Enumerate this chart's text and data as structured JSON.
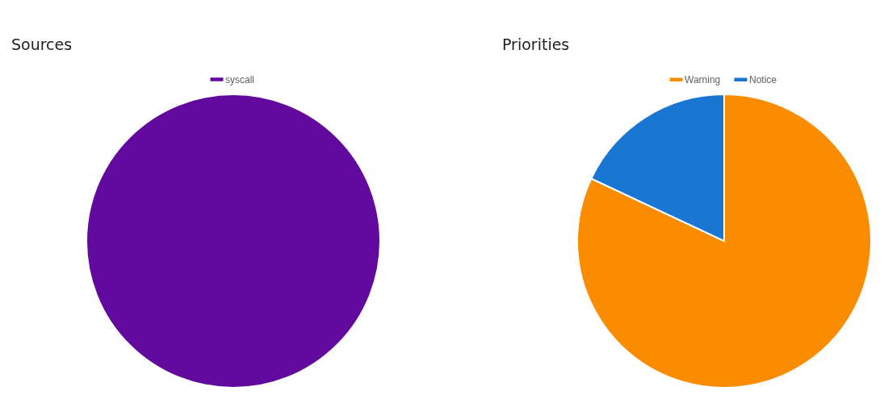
{
  "chart_data": [
    {
      "type": "pie",
      "title": "Sources",
      "categories": [
        "syscall"
      ],
      "values": [
        100
      ],
      "colors": [
        "#620a9e"
      ],
      "legend": "top"
    },
    {
      "type": "pie",
      "title": "Priorities",
      "categories": [
        "Warning",
        "Notice"
      ],
      "values": [
        82,
        18
      ],
      "colors": [
        "#fb8c00",
        "#1976d2"
      ],
      "legend": "top"
    }
  ]
}
